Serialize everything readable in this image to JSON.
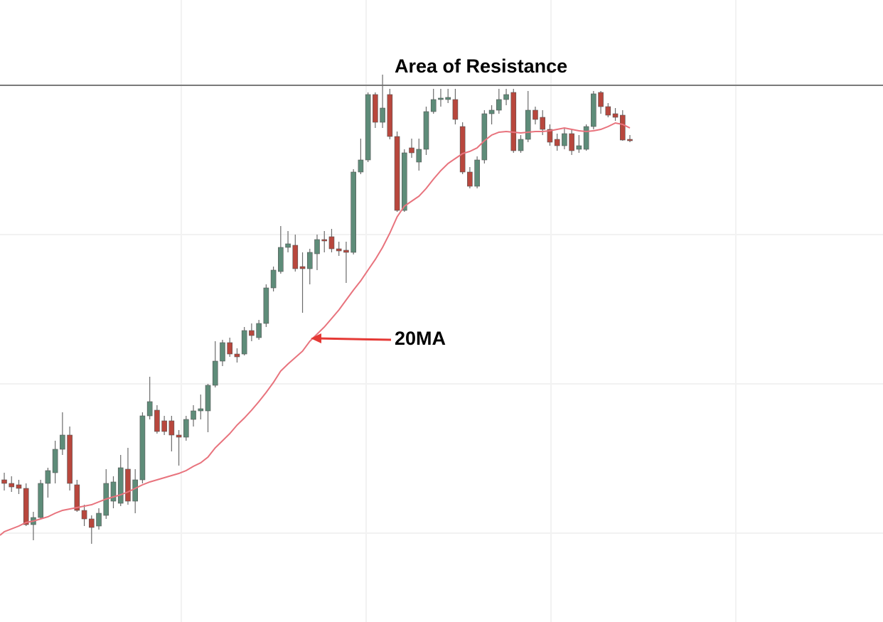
{
  "chart_data": {
    "type": "candlestick",
    "ylim": [
      0,
      875
    ],
    "up_color": "#5e8c79",
    "down_color": "#b8473d",
    "open": [
      200,
      195,
      193,
      188,
      137,
      147,
      195,
      210,
      243,
      263,
      193,
      157,
      145,
      135,
      150,
      170,
      167,
      215,
      170,
      200,
      290,
      298,
      283,
      283,
      263,
      260,
      285,
      297,
      297,
      333,
      367,
      393,
      377,
      377,
      410,
      400,
      420,
      470,
      493,
      527,
      530,
      500,
      497,
      518,
      538,
      542,
      525,
      523,
      520,
      633,
      650,
      742,
      703,
      742,
      683,
      579,
      667,
      647,
      665,
      718,
      735,
      735,
      735,
      697,
      633,
      613,
      650,
      715,
      720,
      735,
      745,
      663,
      679,
      720,
      710,
      693,
      679,
      670,
      687,
      665,
      665,
      697,
      745,
      725,
      715,
      713,
      679
    ],
    "high": [
      210,
      205,
      200,
      195,
      155,
      200,
      217,
      255,
      295,
      275,
      200,
      165,
      150,
      160,
      215,
      205,
      235,
      245,
      215,
      295,
      345,
      305,
      290,
      290,
      270,
      290,
      305,
      320,
      335,
      395,
      397,
      400,
      385,
      415,
      420,
      425,
      475,
      500,
      557,
      550,
      545,
      520,
      525,
      545,
      550,
      553,
      535,
      535,
      637,
      680,
      745,
      745,
      770,
      750,
      690,
      665,
      680,
      680,
      725,
      750,
      750,
      750,
      750,
      703,
      640,
      655,
      720,
      727,
      750,
      750,
      750,
      685,
      747,
      725,
      720,
      700,
      687,
      695,
      693,
      685,
      700,
      747,
      747,
      730,
      723,
      720,
      685
    ],
    "low": [
      185,
      183,
      180,
      135,
      115,
      145,
      175,
      195,
      235,
      185,
      155,
      135,
      110,
      130,
      145,
      160,
      163,
      165,
      153,
      195,
      285,
      265,
      263,
      240,
      220,
      255,
      275,
      285,
      267,
      330,
      360,
      373,
      365,
      375,
      395,
      397,
      415,
      465,
      490,
      520,
      493,
      435,
      475,
      495,
      520,
      520,
      515,
      477,
      517,
      630,
      647,
      695,
      695,
      679,
      577,
      577,
      653,
      635,
      657,
      715,
      725,
      730,
      700,
      630,
      610,
      610,
      645,
      700,
      715,
      727,
      660,
      660,
      675,
      700,
      685,
      670,
      663,
      665,
      657,
      660,
      663,
      693,
      715,
      710,
      705,
      677,
      675
    ],
    "close": [
      195,
      190,
      188,
      137,
      147,
      195,
      213,
      243,
      263,
      195,
      157,
      145,
      133,
      153,
      195,
      197,
      217,
      170,
      200,
      290,
      310,
      268,
      268,
      263,
      260,
      285,
      297,
      300,
      333,
      367,
      393,
      377,
      373,
      410,
      403,
      420,
      470,
      495,
      527,
      532,
      497,
      497,
      520,
      538,
      536,
      525,
      522,
      520,
      633,
      650,
      742,
      703,
      723,
      683,
      579,
      660,
      660,
      665,
      718,
      735,
      737,
      738,
      707,
      633,
      613,
      650,
      715,
      720,
      735,
      742,
      663,
      679,
      720,
      707,
      693,
      675,
      670,
      687,
      663,
      670,
      697,
      743,
      725,
      713,
      710,
      678,
      678
    ],
    "moving_average": {
      "label": "20MA",
      "color": "#e8737d",
      "values": [
        127,
        131,
        135,
        140,
        142,
        145,
        148,
        153,
        157,
        159,
        161,
        163,
        165,
        169,
        173,
        176,
        179,
        183,
        188,
        193,
        197,
        200,
        203,
        206,
        209,
        213,
        219,
        224,
        232,
        245,
        255,
        265,
        277,
        287,
        298,
        310,
        323,
        337,
        353,
        363,
        372,
        381,
        395,
        405,
        415,
        427,
        439,
        453,
        467,
        480,
        495,
        510,
        527,
        547,
        570,
        585,
        592,
        599,
        610,
        623,
        635,
        645,
        652,
        659,
        662,
        667,
        677,
        685,
        689,
        690,
        689,
        688,
        689,
        690,
        690,
        691,
        693,
        695,
        693,
        691,
        690,
        691,
        693,
        697,
        702,
        700,
        695
      ]
    },
    "resistance": {
      "label": "Area of Resistance",
      "value": 755,
      "color": "#7a7a7a"
    }
  }
}
